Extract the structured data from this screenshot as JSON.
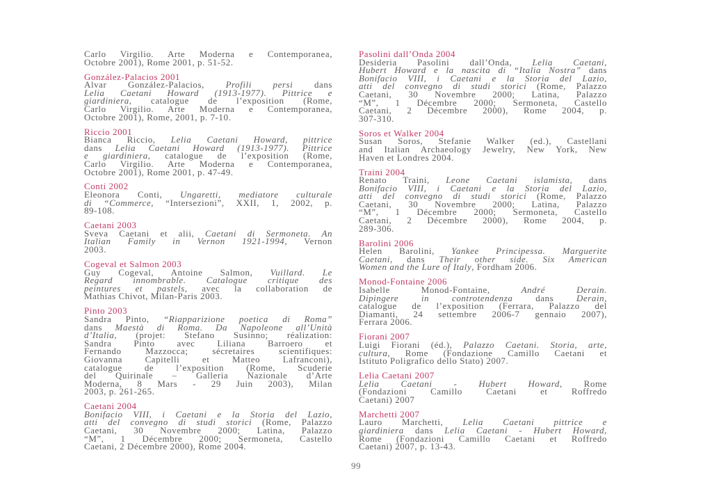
{
  "columns": [
    {
      "entries": [
        {
          "heading": "",
          "lines": [
            [
              [
                "Carlo Virgilio. Arte Moderna e Contemporanea,"
              ]
            ],
            [
              [
                "Octobre 2001), Rome 2001, p. 51-52."
              ]
            ]
          ]
        },
        {
          "heading": "González-Palacios 2001",
          "lines": [
            [
              [
                "Alvar González-Palacios, "
              ],
              [
                "Profili persi",
                1
              ],
              [
                " dans"
              ]
            ],
            [
              [
                "Lelia Caetani Howard (1913-1977). Pittrice e",
                1
              ]
            ],
            [
              [
                "giardiniera",
                1
              ],
              [
                ", catalogue de l’exposition (Rome,"
              ]
            ],
            [
              [
                "Carlo Virgilio. Arte Moderna e Contemporanea,"
              ]
            ],
            [
              [
                "Octobre 2001), Rome, 2001, p. 7-10."
              ]
            ]
          ]
        },
        {
          "heading": "Riccio 2001",
          "lines": [
            [
              [
                "Bianca Riccio, "
              ],
              [
                "Lelia Caetani Howard, pittrice",
                1
              ]
            ],
            [
              [
                "dans "
              ],
              [
                "Lelia Caetani Howard (1913-1977). Pittrice",
                1
              ]
            ],
            [
              [
                "e giardiniera",
                1
              ],
              [
                ", catalogue de l’exposition (Rome,"
              ]
            ],
            [
              [
                "Carlo Virgilio. Arte Moderna e Contemporanea,"
              ]
            ],
            [
              [
                "Octobre 2001), Rome 2001, p. 47-49."
              ]
            ]
          ]
        },
        {
          "heading": "Conti 2002",
          "lines": [
            [
              [
                "Eleonora Conti, "
              ],
              [
                "Ungaretti, mediatore culturale",
                1
              ]
            ],
            [
              [
                "di “Commerce",
                1
              ],
              [
                ", “Intersezioni”, XXII, 1, 2002, p."
              ]
            ],
            [
              [
                "89-108."
              ]
            ]
          ]
        },
        {
          "heading": "Caetani 2003",
          "lines": [
            [
              [
                "Sveva Caetani et alii, "
              ],
              [
                "Caetani di Sermoneta. An",
                1
              ]
            ],
            [
              [
                "Italian Family in Vernon 1921-1994",
                1
              ],
              [
                ", Vernon"
              ]
            ],
            [
              [
                "2003."
              ]
            ]
          ]
        },
        {
          "heading": "Cogeval et Salmon 2003",
          "lines": [
            [
              [
                "Guy Cogeval, Antoine Salmon, "
              ],
              [
                "Vuillard. Le",
                1
              ]
            ],
            [
              [
                "Regard innombrable. Catalogue critique des",
                1
              ]
            ],
            [
              [
                "peintures et pastels",
                1
              ],
              [
                ", avec la collaboration de"
              ]
            ],
            [
              [
                "Mathias Chivot, Milan-Paris 2003."
              ]
            ]
          ]
        },
        {
          "heading": "Pinto 2003",
          "lines": [
            [
              [
                "Sandra Pinto, "
              ],
              [
                "“Riapparizione poetica di Roma”",
                1
              ]
            ],
            [
              [
                "dans "
              ],
              [
                "Maestà di Roma. Da Napoleone all’Unità",
                1
              ]
            ],
            [
              [
                "d’Italia",
                1
              ],
              [
                ", (projet: Stefano Susinno; réalization:"
              ]
            ],
            [
              [
                "Sandra Pinto avec Liliana Barroero et"
              ]
            ],
            [
              [
                "Fernando Mazzocca; sécretaires scientifiques:"
              ]
            ],
            [
              [
                "Giovanna Capitelli et Matteo Lafranconi),"
              ]
            ],
            [
              [
                "catalogue de l’exposition (Rome, Scuderie"
              ]
            ],
            [
              [
                "del Quirinale – Galleria Nazionale d’Arte"
              ]
            ],
            [
              [
                "Moderna, 8 Mars - 29 Juin 2003), Milan"
              ]
            ],
            [
              [
                "2003, p. 261-265."
              ]
            ]
          ]
        },
        {
          "heading": "Caetani 2004",
          "lines": [
            [
              [
                "Bonifacio VIII, i Caetani e la Storia del Lazio,",
                1
              ]
            ],
            [
              [
                "atti del convegno di studi storici",
                1
              ],
              [
                " (Rome, Palazzo"
              ]
            ],
            [
              [
                "Caetani, 30 Novembre 2000; Latina, Palazzo"
              ]
            ],
            [
              [
                "“M”, 1 Décembre 2000; Sermoneta, Castello"
              ]
            ],
            [
              [
                "Caetani, 2 Décembre 2000), Rome 2004."
              ]
            ]
          ]
        }
      ]
    },
    {
      "entries": [
        {
          "heading": "Pasolini dall’Onda 2004",
          "lines": [
            [
              [
                "Desideria Pasolini dall’Onda, "
              ],
              [
                "Lelia Caetani,",
                1
              ]
            ],
            [
              [
                "Hubert Howard e la nascita di “Italia Nostra”",
                1
              ],
              [
                " dans"
              ]
            ],
            [
              [
                "Bonifacio VIII, i Caetani e la Storia del Lazio,",
                1
              ]
            ],
            [
              [
                "atti del convegno di studi storici",
                1
              ],
              [
                " (Rome, Palazzo"
              ]
            ],
            [
              [
                "Caetani, 30 Novembre 2000; Latina, Palazzo"
              ]
            ],
            [
              [
                "“M”, 1 Décembre 2000; Sermoneta, Castello"
              ]
            ],
            [
              [
                "Caetani, 2 Décembre 2000), Rome 2004, p."
              ]
            ],
            [
              [
                "307-310."
              ]
            ]
          ]
        },
        {
          "heading": "Soros et Walker 2004",
          "lines": [
            [
              [
                "Susan Soros, Stefanie Walker (ed.), Castellani"
              ]
            ],
            [
              [
                "and Italian Archaeology Jewelry, New York, New"
              ]
            ],
            [
              [
                "Haven et Londres 2004."
              ]
            ]
          ]
        },
        {
          "heading": "Traini 2004",
          "lines": [
            [
              [
                "Renato Traini, "
              ],
              [
                "Leone Caetani islamista",
                1
              ],
              [
                ", dans"
              ]
            ],
            [
              [
                "Bonifacio VIII, i Caetani e la Storia del Lazio,",
                1
              ]
            ],
            [
              [
                "atti del convegno di studi storici",
                1
              ],
              [
                " (Rome, Palazzo"
              ]
            ],
            [
              [
                "Caetani, 30 Novembre 2000; Latina, Palazzo"
              ]
            ],
            [
              [
                "“M”, 1 Décembre 2000; Sermoneta, Castello"
              ]
            ],
            [
              [
                "Caetani, 2 Décembre 2000), Rome 2004, p."
              ]
            ],
            [
              [
                "289-306."
              ]
            ]
          ]
        },
        {
          "heading": "Barolini 2006",
          "lines": [
            [
              [
                "Helen Barolini, "
              ],
              [
                "Yankee Principessa. Marguerite",
                1
              ]
            ],
            [
              [
                "Caetani",
                1
              ],
              [
                ", dans "
              ],
              [
                "Their other side. Six American",
                1
              ]
            ],
            [
              [
                "Women and the Lure of Italy",
                1
              ],
              [
                ", Fordham 2006."
              ]
            ]
          ]
        },
        {
          "heading": "Monod-Fontaine 2006",
          "lines": [
            [
              [
                "Isabelle Monod-Fontaine, "
              ],
              [
                "André Derain.",
                1
              ]
            ],
            [
              [
                "Dipingere in controtendenza",
                1
              ],
              [
                " dans "
              ],
              [
                "Derain",
                1
              ],
              [
                ","
              ]
            ],
            [
              [
                "catalogue de l’exposition (Ferrara, Palazzo del"
              ]
            ],
            [
              [
                "Diamanti, 24 settembre 2006-7 gennaio 2007),"
              ]
            ],
            [
              [
                "Ferrara 2006."
              ]
            ]
          ]
        },
        {
          "heading": "Fiorani 2007",
          "lines": [
            [
              [
                "Luigi Fiorani (éd.), "
              ],
              [
                "Palazzo Caetani. Storia, arte,",
                1
              ]
            ],
            [
              [
                "cultura",
                1
              ],
              [
                ", Rome (Fondazione Camillo Caetani et"
              ]
            ],
            [
              [
                "Istituto Poligrafico dello Stato) 2007."
              ]
            ]
          ]
        },
        {
          "heading": "Lelia Caetani 2007",
          "lines": [
            [
              [
                "Lelia Caetani - Hubert Howard",
                1
              ],
              [
                ", Rome"
              ]
            ],
            [
              [
                "(Fondazioni Camillo Caetani et Roffredo"
              ]
            ],
            [
              [
                "Caetani) 2007"
              ]
            ]
          ]
        },
        {
          "heading": "Marchetti 2007",
          "lines": [
            [
              [
                "Lauro Marchetti, "
              ],
              [
                "Lelia Caetani pittrice e",
                1
              ]
            ],
            [
              [
                "giardiniera",
                1
              ],
              [
                " dans "
              ],
              [
                "Lelia Caetani - Hubert Howard",
                1
              ],
              [
                ","
              ]
            ],
            [
              [
                "Rome (Fondazioni Camillo Caetani et Roffredo"
              ]
            ],
            [
              [
                "Caetani) 2007, p. 13-43."
              ]
            ]
          ]
        }
      ]
    }
  ],
  "page_number": "99",
  "colors": {
    "heading": "#c23a63",
    "body": "#5a5a5a"
  }
}
